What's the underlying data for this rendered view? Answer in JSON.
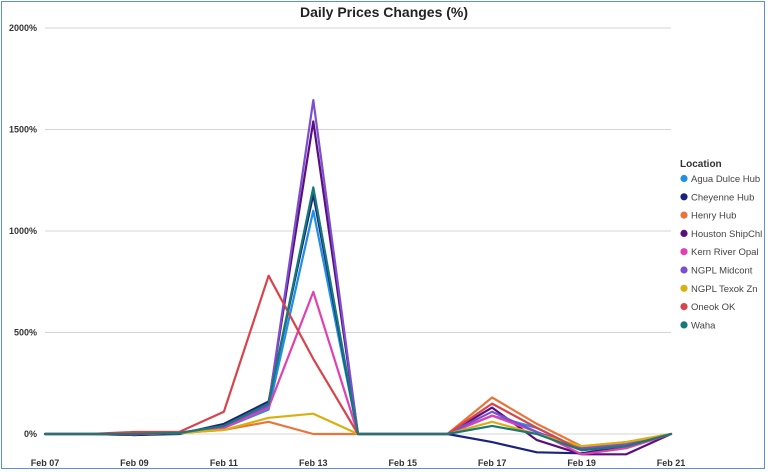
{
  "chart_data": {
    "type": "line",
    "title": "Daily Prices Changes (%)",
    "xlabel": "",
    "ylabel": "",
    "ylim": [
      -100,
      2000
    ],
    "yticks": [
      0,
      500,
      1000,
      1500,
      2000
    ],
    "ytick_labels": [
      "0%",
      "500%",
      "1000%",
      "1500%",
      "2000%"
    ],
    "x": [
      "Feb 07",
      "Feb 08",
      "Feb 09",
      "Feb 10",
      "Feb 11",
      "Feb 12",
      "Feb 13",
      "Feb 14",
      "Feb 15",
      "Feb 16",
      "Feb 17",
      "Feb 18",
      "Feb 19",
      "Feb 20",
      "Feb 21"
    ],
    "x_tick_labels": [
      "Feb 07",
      "Feb 09",
      "Feb 11",
      "Feb 13",
      "Feb 15",
      "Feb 17",
      "Feb 19",
      "Feb 21"
    ],
    "x_tick_index": [
      0,
      2,
      4,
      6,
      8,
      10,
      12,
      14
    ],
    "grid": true,
    "legend": {
      "title": "Location",
      "position": "right"
    },
    "series": [
      {
        "name": "Agua Dulce Hub",
        "color": "#1f8fe8",
        "values": [
          0,
          0,
          0,
          5,
          30,
          120,
          1100,
          0,
          0,
          0,
          90,
          30,
          -80,
          -50,
          0
        ]
      },
      {
        "name": "Cheyenne Hub",
        "color": "#1a237e",
        "values": [
          0,
          0,
          -5,
          0,
          50,
          160,
          1180,
          0,
          0,
          0,
          -40,
          -90,
          -95,
          -60,
          0
        ]
      },
      {
        "name": "Henry Hub",
        "color": "#e8763a",
        "values": [
          0,
          0,
          0,
          5,
          20,
          60,
          0,
          0,
          0,
          0,
          180,
          50,
          -60,
          -40,
          0
        ]
      },
      {
        "name": "Houston ShipChl",
        "color": "#5b0f7e",
        "values": [
          0,
          0,
          -5,
          5,
          40,
          150,
          1540,
          0,
          0,
          0,
          130,
          -30,
          -100,
          -100,
          0
        ]
      },
      {
        "name": "Kern River Opal",
        "color": "#e040b0",
        "values": [
          0,
          0,
          0,
          5,
          30,
          130,
          700,
          0,
          0,
          0,
          90,
          10,
          -100,
          -70,
          0
        ]
      },
      {
        "name": "NGPL Midcont",
        "color": "#7b4fd0",
        "values": [
          0,
          0,
          0,
          5,
          40,
          140,
          1645,
          0,
          0,
          0,
          110,
          10,
          -70,
          -50,
          0
        ]
      },
      {
        "name": "NGPL Texok Zn",
        "color": "#d9b00f",
        "values": [
          0,
          0,
          0,
          5,
          20,
          80,
          100,
          0,
          0,
          0,
          60,
          0,
          -60,
          -40,
          0
        ]
      },
      {
        "name": "Oneok OK",
        "color": "#d9434a",
        "values": [
          0,
          0,
          10,
          10,
          110,
          780,
          370,
          0,
          0,
          0,
          150,
          30,
          -80,
          -60,
          0
        ]
      },
      {
        "name": "Waha",
        "color": "#177a78",
        "values": [
          0,
          0,
          0,
          5,
          40,
          150,
          1215,
          0,
          0,
          0,
          40,
          0,
          -80,
          -60,
          0
        ]
      }
    ]
  }
}
